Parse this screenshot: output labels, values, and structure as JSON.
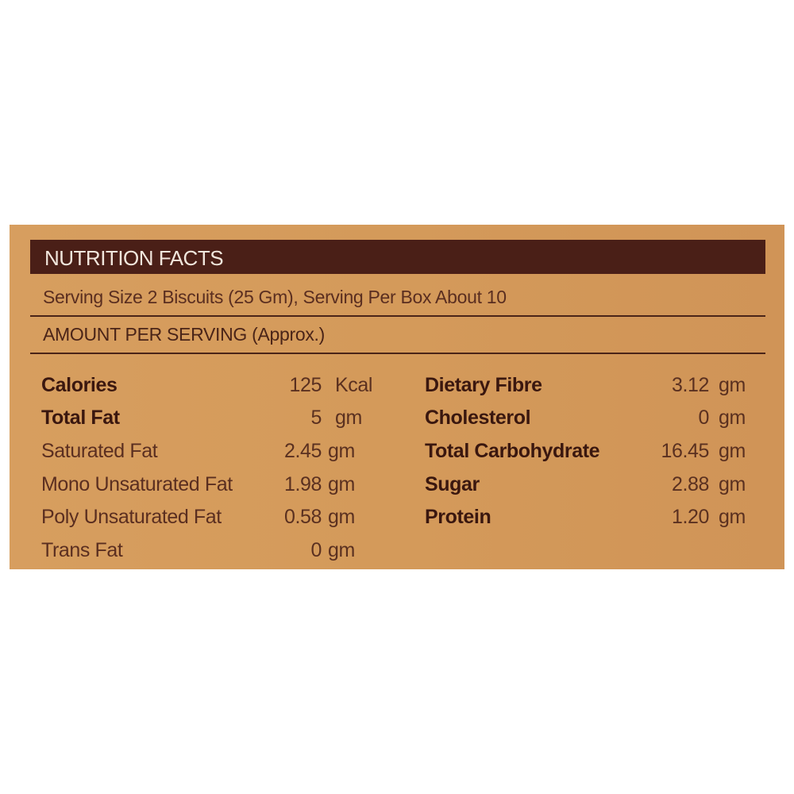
{
  "header": {
    "title": "NUTRITION FACTS"
  },
  "serving_info": "Serving Size 2 Biscuits (25 Gm), Serving Per Box About 10",
  "amount_heading": "AMOUNT PER SERVING (Approx.)",
  "colors": {
    "background": "#d49a5a",
    "header_bar": "#4a1f17",
    "text": "#3a170f"
  },
  "left_column": [
    {
      "label": "Calories",
      "value": "125",
      "unit": "Kcal",
      "bold": true
    },
    {
      "label": "Total Fat",
      "value": "5",
      "unit": "gm",
      "bold": true
    },
    {
      "label": "Saturated Fat",
      "value": "2.45",
      "unit": "gm",
      "bold": false
    },
    {
      "label": "Mono Unsaturated Fat",
      "value": "1.98",
      "unit": "gm",
      "bold": false
    },
    {
      "label": "Poly Unsaturated Fat",
      "value": "0.58",
      "unit": "gm",
      "bold": false
    },
    {
      "label": "Trans Fat",
      "value": "0",
      "unit": "gm",
      "bold": false
    }
  ],
  "right_column": [
    {
      "label": "Dietary Fibre",
      "value": "3.12",
      "unit": "gm",
      "bold": true
    },
    {
      "label": "Cholesterol",
      "value": "0",
      "unit": "gm",
      "bold": true
    },
    {
      "label": "Total Carbohydrate",
      "value": "16.45",
      "unit": "gm",
      "bold": true
    },
    {
      "label": "Sugar",
      "value": "2.88",
      "unit": "gm",
      "bold": true
    },
    {
      "label": "Protein",
      "value": "1.20",
      "unit": "gm",
      "bold": true
    }
  ]
}
